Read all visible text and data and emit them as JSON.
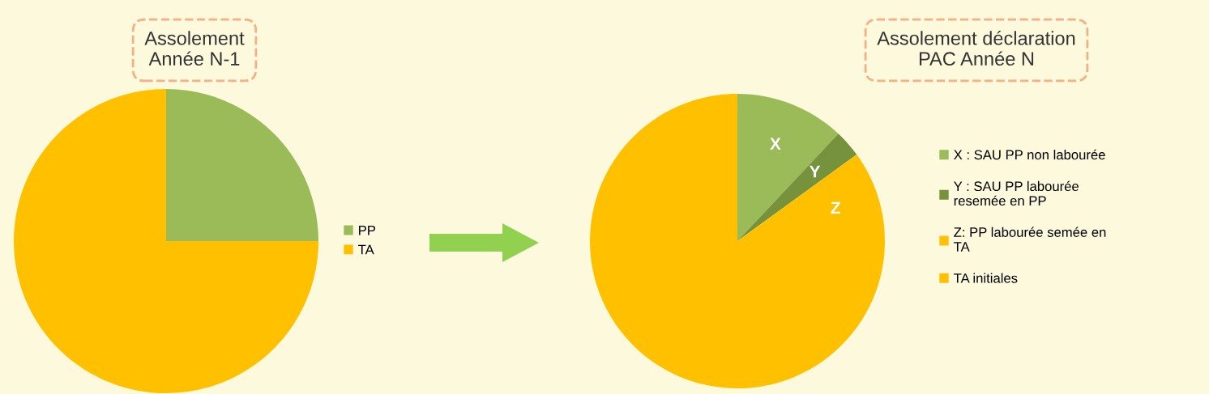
{
  "chart_data": [
    {
      "type": "pie",
      "title": "Assolement\nAnnée N-1",
      "categories": [
        "PP",
        "TA"
      ],
      "values": [
        25,
        75
      ],
      "colors": [
        "#9bbb59",
        "#ffc000"
      ],
      "legend": "right"
    },
    {
      "type": "pie",
      "title": "Assolement déclaration\nPAC Année N",
      "categories": [
        "X : SAU PP non labourée",
        "Y : SAU PP labourée\nresemée en PP",
        "Z: PP labourée semée en\nTA",
        "TA initiales"
      ],
      "values": [
        12,
        3,
        10,
        75
      ],
      "colors": [
        "#9bbb59",
        "#76923c",
        "#ffc000",
        "#ffc000"
      ],
      "value_labels": [
        "X",
        "Y",
        "Z",
        null
      ],
      "legend": "right"
    }
  ]
}
